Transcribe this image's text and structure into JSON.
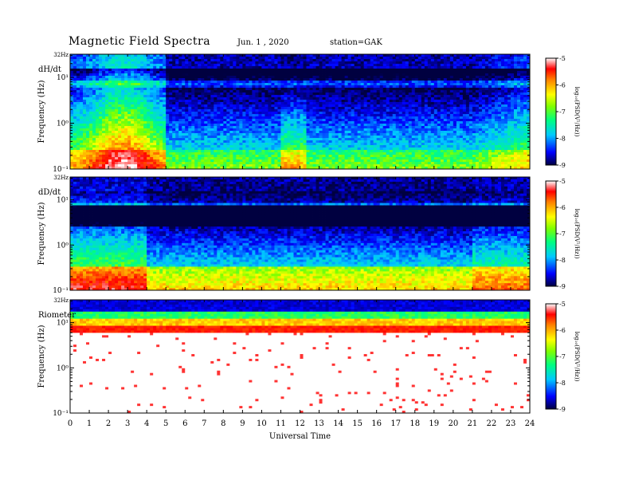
{
  "header": {
    "title": "Magnetic  Field  Spectra",
    "date": "Jun.  1  ,  2020",
    "station": "station=GAK"
  },
  "chart_data": [
    {
      "type": "heatmap",
      "panel_label": "dH/dt",
      "ylabel": "Frequency  (Hz)",
      "yscale": "log",
      "ylim": [
        0.1,
        32
      ],
      "ytick_labels": [
        "10⁻¹",
        "10⁰",
        "10¹",
        "32Hz"
      ],
      "xlim": [
        0,
        24
      ],
      "colorbar": {
        "label": "log₁₀(PSD(V²/Hz))",
        "range": [
          -9,
          -5
        ],
        "tick_labels": [
          "-5",
          "-6",
          "-7",
          "-8",
          "-9"
        ]
      }
    },
    {
      "type": "heatmap",
      "panel_label": "dD/dt",
      "ylabel": "Frequency  (Hz)",
      "yscale": "log",
      "ylim": [
        0.1,
        32
      ],
      "ytick_labels": [
        "10⁻¹",
        "10⁰",
        "10¹",
        "32Hz"
      ],
      "xlim": [
        0,
        24
      ],
      "colorbar": {
        "label": "log₁₀(PSD(V²/Hz))",
        "range": [
          -9,
          -5
        ],
        "tick_labels": [
          "-5",
          "-6",
          "-7",
          "-8",
          "-9"
        ]
      }
    },
    {
      "type": "heatmap",
      "panel_label": "Riometer",
      "ylabel": "Frequency  (Hz)",
      "yscale": "log",
      "ylim": [
        0.1,
        32
      ],
      "ytick_labels": [
        "10⁻¹",
        "10⁰",
        "10¹",
        "32Hz"
      ],
      "xlim": [
        0,
        24
      ],
      "xlabel": "Universal  Time",
      "xtick_labels": [
        "0",
        "1",
        "2",
        "3",
        "4",
        "5",
        "6",
        "7",
        "8",
        "9",
        "10",
        "11",
        "12",
        "13",
        "14",
        "15",
        "16",
        "17",
        "18",
        "19",
        "20",
        "21",
        "22",
        "23",
        "24"
      ],
      "colorbar": {
        "label": "log₁₀(PSD(V²/Hz))",
        "range": [
          -9,
          -5
        ],
        "tick_labels": [
          "-5",
          "-6",
          "-7",
          "-8",
          "-9"
        ]
      }
    }
  ]
}
